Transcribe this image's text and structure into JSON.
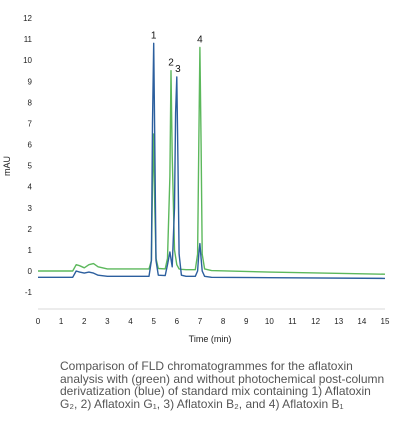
{
  "chart_data": {
    "type": "line",
    "ylabel": "mAU",
    "xlabel": "Time (min)",
    "xlim": [
      0,
      15
    ],
    "ylim": [
      -2,
      12
    ],
    "x_ticks": [
      "0",
      "1",
      "2",
      "3",
      "4",
      "5",
      "6",
      "7",
      "8",
      "9",
      "10",
      "11",
      "12",
      "13",
      "14",
      "15"
    ],
    "y_ticks": [
      "12",
      "11",
      "10",
      "9",
      "8",
      "7",
      "6",
      "5",
      "4",
      "3",
      "2",
      "1",
      "0",
      "-1"
    ],
    "grid": false,
    "legend": "none",
    "series": [
      {
        "color": "#5cb85c",
        "x": [
          0,
          1.5,
          1.65,
          1.8,
          2.0,
          2.2,
          2.4,
          2.6,
          3.0,
          4.8,
          4.9,
          4.95,
          5.0,
          5.05,
          5.1,
          5.2,
          5.5,
          5.6,
          5.7,
          5.75,
          5.8,
          5.9,
          6.0,
          6.1,
          6.2,
          6.4,
          6.8,
          6.9,
          6.95,
          7.0,
          7.05,
          7.1,
          7.2,
          7.5,
          10,
          15
        ],
        "y": [
          0.0,
          0.0,
          0.3,
          0.25,
          0.15,
          0.3,
          0.35,
          0.2,
          0.1,
          0.1,
          0.5,
          4.0,
          6.5,
          3.0,
          0.6,
          0.12,
          0.1,
          0.6,
          4.5,
          9.5,
          5.5,
          1.0,
          0.3,
          0.1,
          0.08,
          0.06,
          0.06,
          0.8,
          6.0,
          10.6,
          6.0,
          0.8,
          0.1,
          0.02,
          -0.05,
          -0.15
        ]
      },
      {
        "color": "#2c5f9e",
        "x": [
          0,
          1.5,
          1.65,
          1.8,
          2.0,
          2.2,
          2.4,
          2.6,
          3.0,
          4.8,
          4.9,
          4.95,
          5.0,
          5.05,
          5.1,
          5.2,
          5.5,
          5.6,
          5.7,
          5.8,
          5.9,
          5.95,
          6.0,
          6.05,
          6.1,
          6.2,
          6.4,
          6.8,
          6.9,
          6.95,
          7.0,
          7.05,
          7.1,
          7.2,
          7.5,
          10,
          15
        ],
        "y": [
          -0.3,
          -0.3,
          0.0,
          -0.05,
          -0.1,
          -0.05,
          -0.1,
          -0.2,
          -0.25,
          -0.25,
          0.5,
          7.0,
          10.8,
          6.0,
          0.5,
          -0.2,
          -0.22,
          0.3,
          0.9,
          0.2,
          3.0,
          7.5,
          9.2,
          5.0,
          0.8,
          -0.2,
          -0.25,
          -0.25,
          0.0,
          0.8,
          1.3,
          0.6,
          0.0,
          -0.25,
          -0.3,
          -0.32,
          -0.35
        ]
      }
    ],
    "annotations": [
      {
        "text": "1",
        "x": 5.0,
        "y": 10.8
      },
      {
        "text": "2",
        "x": 5.75,
        "y": 9.5
      },
      {
        "text": "3",
        "x": 6.05,
        "y": 9.2
      },
      {
        "text": "4",
        "x": 7.0,
        "y": 10.6
      }
    ]
  },
  "caption": "Comparison of FLD chromatogrammes for the aflatoxin analysis with (green) and without photochemical post-column derivatization (blue) of standard mix containing 1) Aflatoxin G₂, 2) Aflatoxin G₁, 3) Aflatoxin B₂, and 4) Aflatoxin B₁"
}
